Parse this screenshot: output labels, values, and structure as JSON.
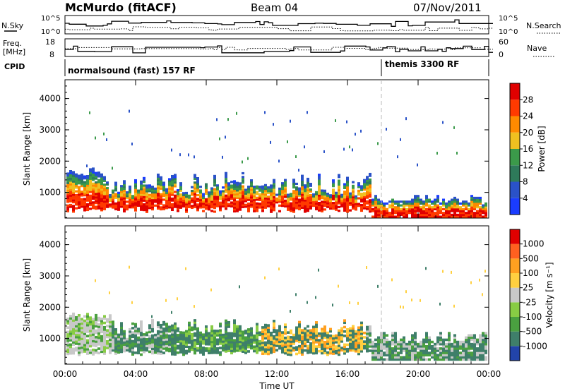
{
  "header": {
    "station": "McMurdo (fitACF)",
    "beam": "Beam 04",
    "date": "07/Nov/2011"
  },
  "panels": {
    "nsky_label": "N.Sky",
    "nsky_ticks": [
      "10^5",
      "10^0"
    ],
    "nsearch_label": "N.Search",
    "nsearch_ticks": [
      "10^5",
      "10^0"
    ],
    "freq_label_line1": "Freq.",
    "freq_label_line2": "[MHz]",
    "freq_ticks": [
      "18",
      "8"
    ],
    "nave_label": "Nave",
    "nave_ticks": [
      "60",
      "0"
    ],
    "cpid_label": "CPID",
    "cpid_segments": [
      {
        "name": "normalsound (fast) 157 RF",
        "start_hour": 0
      },
      {
        "name": "themis 3300 RF",
        "start_hour": 18
      }
    ]
  },
  "chart_data": [
    {
      "type": "heatmap",
      "name": "power-panel",
      "ylabel": "Slant Range [km]",
      "xlabel": "",
      "x_ticks": [
        "00:00",
        "04:00",
        "08:00",
        "12:00",
        "16:00",
        "20:00",
        "00:00"
      ],
      "x_range_hours": [
        0,
        24
      ],
      "y_ticks": [
        1000,
        2000,
        3000,
        4000
      ],
      "ylim": [
        180,
        4600
      ],
      "colorbar": {
        "label": "Power [dB]",
        "ticks": [
          "4",
          "8",
          "12",
          "16",
          "20",
          "24",
          "28"
        ],
        "colors": [
          "#1a3cff",
          "#2a52c8",
          "#2e7a5a",
          "#3b9a4a",
          "#f0c020",
          "#ff8a00",
          "#ff3a00",
          "#e00000"
        ]
      },
      "bands": [
        {
          "range_km": [
            200,
            700
          ],
          "value": "28"
        },
        {
          "range_km": [
            700,
            1400
          ],
          "value": "20"
        },
        {
          "range_km": [
            1400,
            1800
          ],
          "value": "8"
        }
      ]
    },
    {
      "type": "heatmap",
      "name": "velocity-panel",
      "ylabel": "Slant Range [km]",
      "xlabel": "Time UT",
      "x_ticks": [
        "00:00",
        "04:00",
        "08:00",
        "12:00",
        "16:00",
        "20:00",
        "00:00"
      ],
      "x_range_hours": [
        0,
        24
      ],
      "y_ticks": [
        1000,
        2000,
        3000,
        4000
      ],
      "ylim": [
        180,
        4600
      ],
      "colorbar": {
        "label": "Velocity [m s⁻¹]",
        "ticks": [
          "1000",
          "500",
          "100",
          "25",
          "-25",
          "-100",
          "-500",
          "-1000"
        ],
        "colors": [
          "#2244aa",
          "#3f7f6a",
          "#4aa040",
          "#88cc44",
          "#c8c8c8",
          "#ffd040",
          "#ffa020",
          "#ff6020",
          "#e00000"
        ]
      }
    }
  ]
}
